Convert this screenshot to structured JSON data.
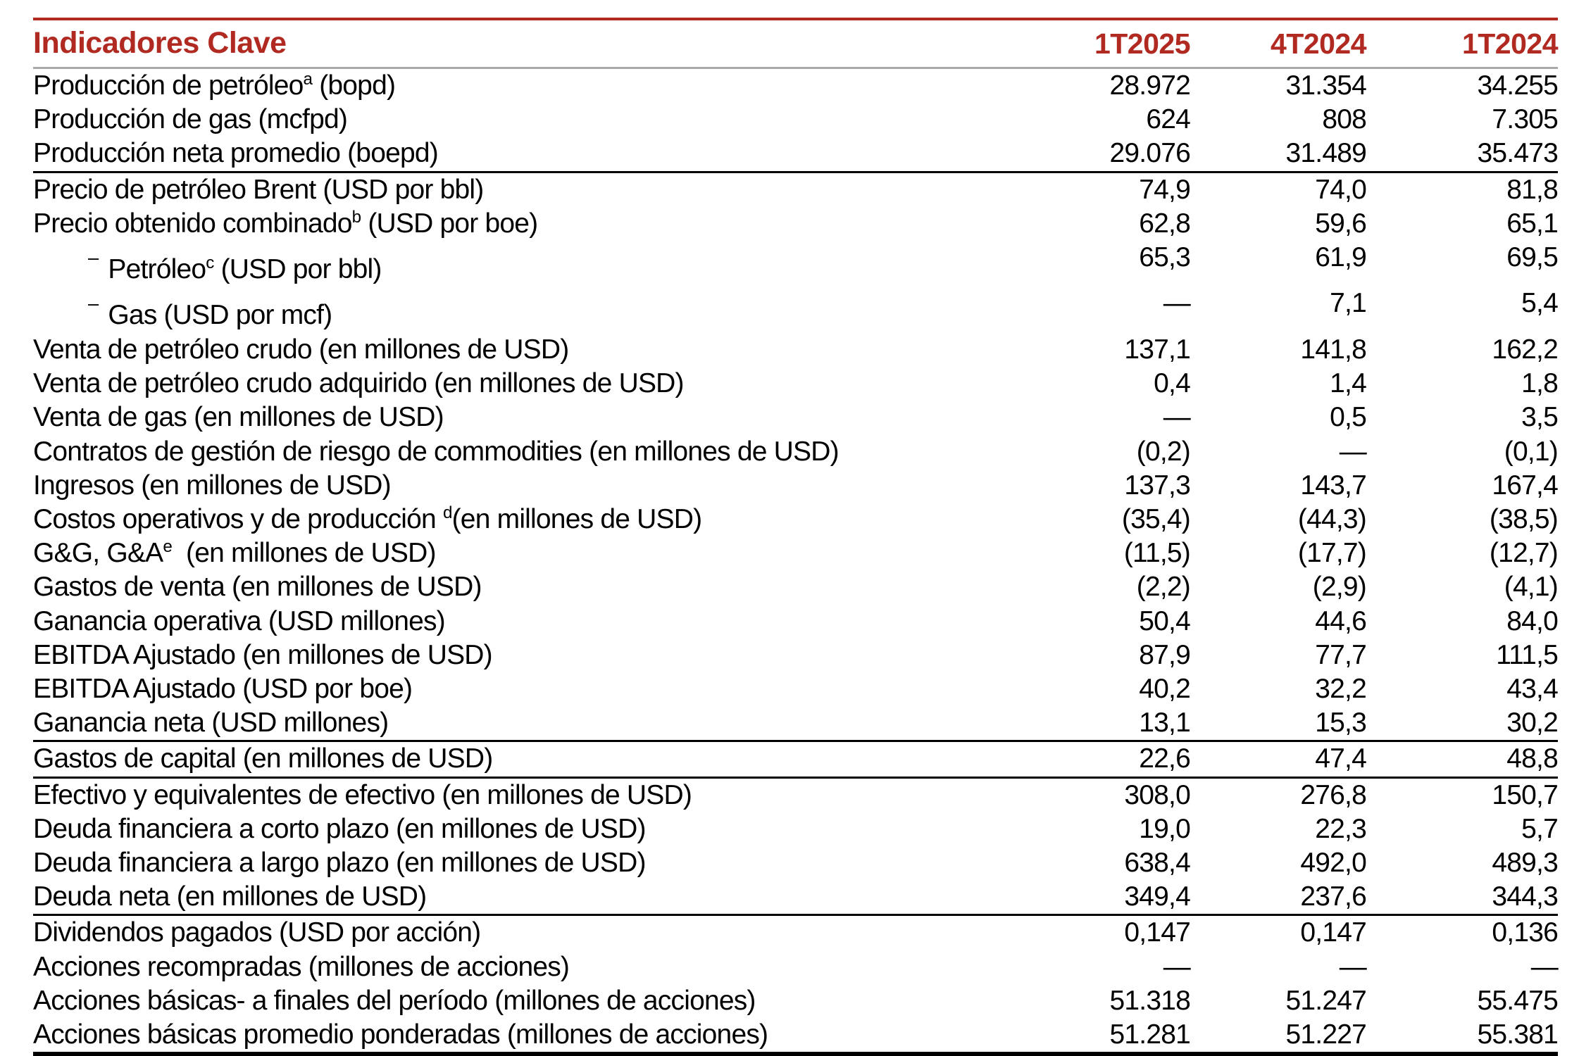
{
  "accent_color": "#B02A22",
  "table": {
    "title": "Indicadores Clave",
    "columns": [
      "1T2025",
      "4T2024",
      "1T2024"
    ],
    "rows": [
      {
        "pre": "Producción de petróleo",
        "sup": "a",
        "post": " (bopd)",
        "values": [
          "28.972",
          "31.354",
          "34.255"
        ]
      },
      {
        "pre": "Producción de gas (mcfpd)",
        "values": [
          "624",
          "808",
          "7.305"
        ]
      },
      {
        "pre": "Producción neta promedio (boepd)",
        "values": [
          "29.076",
          "31.489",
          "35.473"
        ],
        "rule_below": true
      },
      {
        "pre": "Precio de petróleo Brent (USD por bbl)",
        "values": [
          "74,9",
          "74,0",
          "81,8"
        ]
      },
      {
        "pre": "Precio obtenido combinado",
        "sup": "b",
        "post": " (USD por boe)",
        "values": [
          "62,8",
          "59,6",
          "65,1"
        ]
      },
      {
        "pre": "Petróleo",
        "sup": "c",
        "post": " (USD por bbl)",
        "indent": true,
        "values": [
          "65,3",
          "61,9",
          "69,5"
        ]
      },
      {
        "pre": "Gas (USD por mcf)",
        "indent": true,
        "values": [
          "—",
          "7,1",
          "5,4"
        ]
      },
      {
        "pre": "Venta de petróleo crudo (en millones de USD)",
        "values": [
          "137,1",
          "141,8",
          "162,2"
        ]
      },
      {
        "pre": "Venta de petróleo crudo adquirido (en millones de USD)",
        "values": [
          "0,4",
          "1,4",
          "1,8"
        ]
      },
      {
        "pre": "Venta de gas (en millones de USD)",
        "values": [
          "—",
          "0,5",
          "3,5"
        ]
      },
      {
        "pre": "Contratos de gestión de riesgo de commodities (en millones de USD)",
        "values": [
          "(0,2)",
          "—",
          "(0,1)"
        ]
      },
      {
        "pre": "Ingresos (en millones de USD)",
        "values": [
          "137,3",
          "143,7",
          "167,4"
        ]
      },
      {
        "pre": "Costos operativos y de producción ",
        "sup": "d",
        "post": "(en millones de USD)",
        "values": [
          "(35,4)",
          "(44,3)",
          "(38,5)"
        ]
      },
      {
        "pre": "G&G, G&A",
        "sup": "e",
        "post": "  (en millones de USD)",
        "values": [
          "(11,5)",
          "(17,7)",
          "(12,7)"
        ]
      },
      {
        "pre": "Gastos de venta (en millones de USD)",
        "values": [
          "(2,2)",
          "(2,9)",
          "(4,1)"
        ]
      },
      {
        "pre": "Ganancia operativa (USD millones)",
        "values": [
          "50,4",
          "44,6",
          "84,0"
        ]
      },
      {
        "pre": "EBITDA Ajustado (en millones de USD)",
        "values": [
          "87,9",
          "77,7",
          "111,5"
        ]
      },
      {
        "pre": "EBITDA Ajustado (USD por boe)",
        "values": [
          "40,2",
          "32,2",
          "43,4"
        ]
      },
      {
        "pre": "Ganancia neta (USD millones)",
        "values": [
          "13,1",
          "15,3",
          "30,2"
        ],
        "rule_below": true
      },
      {
        "pre": "Gastos de capital (en millones de USD)",
        "values": [
          "22,6",
          "47,4",
          "48,8"
        ],
        "rule_below": true
      },
      {
        "pre": "Efectivo y equivalentes de efectivo (en millones de USD)",
        "values": [
          "308,0",
          "276,8",
          "150,7"
        ]
      },
      {
        "pre": "Deuda financiera a corto plazo (en millones de USD)",
        "values": [
          "19,0",
          "22,3",
          "5,7"
        ]
      },
      {
        "pre": "Deuda financiera a largo plazo (en millones de USD)",
        "values": [
          "638,4",
          "492,0",
          "489,3"
        ]
      },
      {
        "pre": "Deuda neta (en millones de USD)",
        "values": [
          "349,4",
          "237,6",
          "344,3"
        ],
        "rule_below": true
      },
      {
        "pre": "Dividendos pagados (USD por acción)",
        "values": [
          "0,147",
          "0,147",
          "0,136"
        ]
      },
      {
        "pre": "Acciones recompradas (millones de acciones)",
        "values": [
          "—",
          "—",
          "—"
        ]
      },
      {
        "pre": "Acciones básicas- a finales del período (millones de acciones)",
        "values": [
          "51.318",
          "51.247",
          "55.475"
        ]
      },
      {
        "pre": "Acciones básicas promedio ponderadas (millones de acciones)",
        "values": [
          "51.281",
          "51.227",
          "55.381"
        ]
      }
    ]
  }
}
